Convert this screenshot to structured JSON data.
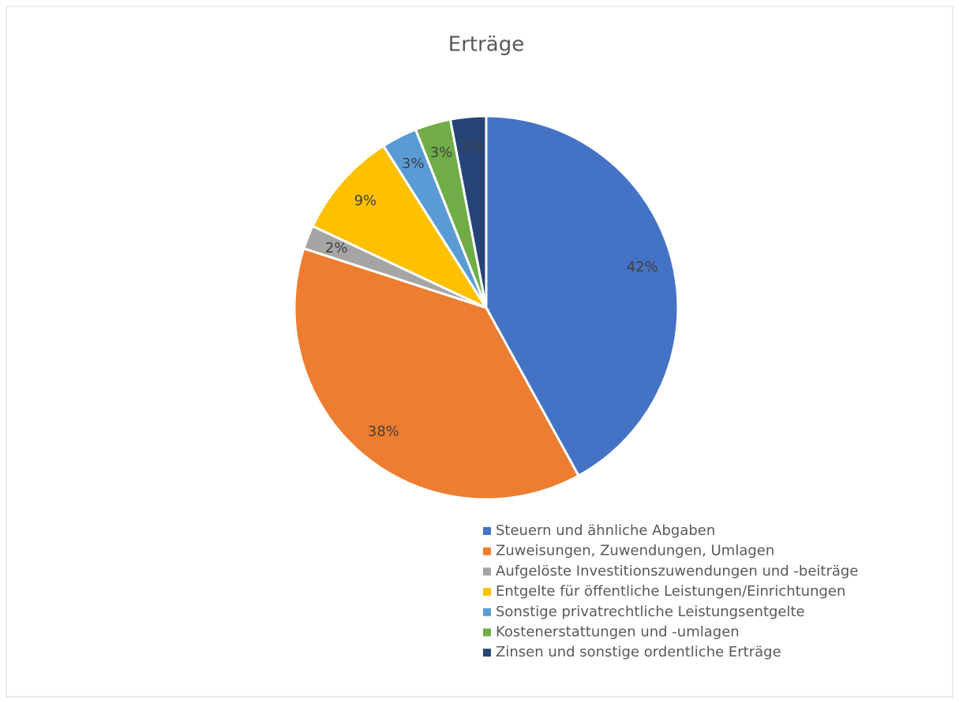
{
  "chart_data": {
    "type": "pie",
    "title": "Erträge",
    "categories": [
      "Steuern und ähnliche Abgaben",
      "Zuweisungen, Zuwendungen, Umlagen",
      "Aufgelöste Investitionszuwendungen und -beiträge",
      "Entgelte für öffentliche Leistungen/Einrichtungen",
      "Sonstige privatrechtliche Leistungsentgelte",
      "Kostenerstattungen und -umlagen",
      "Zinsen und sonstige ordentliche Erträge"
    ],
    "values": [
      42,
      38,
      2,
      9,
      3,
      3,
      3
    ],
    "value_labels": [
      "42%",
      "38%",
      "2%",
      "9%",
      "3%",
      "3%",
      "3%"
    ],
    "colors": [
      "#4472c4",
      "#ed7d31",
      "#a5a5a5",
      "#ffc000",
      "#5b9bd5",
      "#70ad47",
      "#264478"
    ],
    "legend": "bottom"
  }
}
